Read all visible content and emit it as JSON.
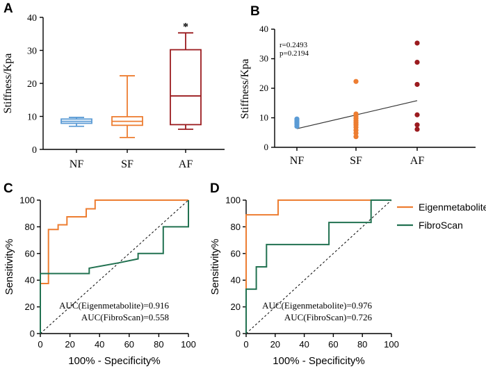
{
  "chart_data": [
    {
      "panel": "A",
      "type": "box",
      "ylabel": "Stiffness/Kpa",
      "ylim": [
        0,
        40
      ],
      "yticks": [
        0,
        10,
        20,
        30,
        40
      ],
      "categories": [
        "NF",
        "SF",
        "AF"
      ],
      "boxes": [
        {
          "name": "NF",
          "min": 7.0,
          "q1": 7.9,
          "median": 8.5,
          "q3": 9.2,
          "max": 9.7,
          "color": "#5b9bd5"
        },
        {
          "name": "SF",
          "min": 3.6,
          "q1": 7.3,
          "median": 8.5,
          "q3": 9.9,
          "max": 22.3,
          "color": "#ed7d31"
        },
        {
          "name": "AF",
          "min": 6.1,
          "q1": 7.5,
          "median": 16.2,
          "q3": 30.2,
          "max": 35.3,
          "color": "#9b1b1f"
        }
      ],
      "annotation": "*"
    },
    {
      "panel": "B",
      "type": "scatter",
      "ylabel": "Stiffness/Kpa",
      "ylim": [
        0,
        40
      ],
      "yticks": [
        0,
        10,
        20,
        30,
        40
      ],
      "categories": [
        "NF",
        "SF",
        "AF"
      ],
      "stats": [
        "r=0.2493",
        "p=0.2194"
      ],
      "series": [
        {
          "name": "NF",
          "color": "#5b9bd5",
          "values": [
            7.1,
            7.8,
            8.3,
            8.8,
            9.2,
            9.6
          ]
        },
        {
          "name": "SF",
          "color": "#ed7d31",
          "values": [
            3.6,
            4.8,
            5.8,
            6.8,
            7.6,
            8.3,
            9.0,
            9.8,
            10.6,
            11.3,
            22.3
          ]
        },
        {
          "name": "AF",
          "color": "#9b1b1f",
          "values": [
            6.1,
            7.6,
            11.0,
            21.3,
            28.8,
            35.3
          ]
        }
      ],
      "fit_line": {
        "from": [
          1,
          6.3
        ],
        "to": [
          3,
          15.8
        ]
      }
    },
    {
      "panel": "C",
      "type": "line",
      "xlabel": "100% - Specificity%",
      "ylabel": "Sensitivity%",
      "xlim": [
        0,
        100
      ],
      "ylim": [
        0,
        100
      ],
      "ticks": [
        0,
        20,
        40,
        60,
        80,
        100
      ],
      "series": [
        {
          "name": "Eigenmetabolite",
          "color": "#ed7d31",
          "points": [
            [
              0,
              0
            ],
            [
              0,
              37.5
            ],
            [
              5.5,
              37.5
            ],
            [
              5.5,
              78
            ],
            [
              12,
              78
            ],
            [
              12,
              81.5
            ],
            [
              18,
              81.5
            ],
            [
              18,
              87.5
            ],
            [
              31,
              87.5
            ],
            [
              31,
              93.5
            ],
            [
              37,
              93.5
            ],
            [
              37,
              100
            ],
            [
              100,
              100
            ]
          ]
        },
        {
          "name": "FibroScan",
          "color": "#217150",
          "points": [
            [
              0,
              0
            ],
            [
              0,
              45
            ],
            [
              33,
              45
            ],
            [
              33,
              49
            ],
            [
              53,
              53
            ],
            [
              66,
              56
            ],
            [
              66,
              60
            ],
            [
              83,
              60
            ],
            [
              83,
              80
            ],
            [
              100,
              80
            ],
            [
              100,
              100
            ]
          ]
        }
      ],
      "annotations": [
        "AUC(Eigenmetabolite)=0.916",
        "AUC(FibroScan)=0.558"
      ]
    },
    {
      "panel": "D",
      "type": "line",
      "xlabel": "100% - Specificity%",
      "ylabel": "Sensitivity%",
      "xlim": [
        0,
        100
      ],
      "ylim": [
        0,
        100
      ],
      "ticks": [
        0,
        20,
        40,
        60,
        80,
        100
      ],
      "series": [
        {
          "name": "Eigenmetabolite",
          "color": "#ed7d31",
          "points": [
            [
              0,
              0
            ],
            [
              0,
              89
            ],
            [
              22,
              89
            ],
            [
              22,
              100
            ],
            [
              100,
              100
            ]
          ]
        },
        {
          "name": "FibroScan",
          "color": "#217150",
          "points": [
            [
              0,
              0
            ],
            [
              0,
              33.3
            ],
            [
              7,
              33.3
            ],
            [
              7,
              50
            ],
            [
              14,
              50
            ],
            [
              14,
              66.7
            ],
            [
              57,
              66.7
            ],
            [
              57,
              83.3
            ],
            [
              86,
              83.3
            ],
            [
              86,
              100
            ],
            [
              100,
              100
            ]
          ]
        }
      ],
      "annotations": [
        "AUC(Eigenmetabolite)=0.976",
        "AUC(FibroScan)=0.726"
      ]
    }
  ],
  "legend": [
    {
      "label": "Eigenmetabolite",
      "color": "#ed7d31"
    },
    {
      "label": "FibroScan",
      "color": "#217150"
    }
  ]
}
